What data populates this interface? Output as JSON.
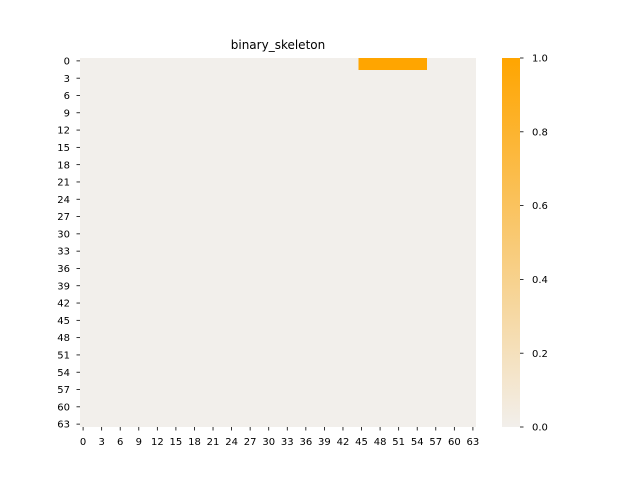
{
  "chart_data": {
    "type": "heatmap",
    "title": "binary_skeleton",
    "xlabel": "",
    "ylabel": "",
    "n_rows": 64,
    "n_cols": 64,
    "default_value": 0,
    "nonzero_cells": [
      {
        "row": 0,
        "col_start": 45,
        "col_end": 55,
        "value": 1
      },
      {
        "row": 1,
        "col_start": 45,
        "col_end": 55,
        "value": 1
      }
    ],
    "x_ticks": [
      "0",
      "3",
      "6",
      "9",
      "12",
      "15",
      "18",
      "21",
      "24",
      "27",
      "30",
      "33",
      "36",
      "39",
      "42",
      "45",
      "48",
      "51",
      "54",
      "57",
      "60",
      "63"
    ],
    "y_ticks": [
      "0",
      "3",
      "6",
      "9",
      "12",
      "15",
      "18",
      "21",
      "24",
      "27",
      "30",
      "33",
      "36",
      "39",
      "42",
      "45",
      "48",
      "51",
      "54",
      "57",
      "60",
      "63"
    ],
    "colorbar": {
      "min": 0.0,
      "max": 1.0,
      "ticks": [
        "0.0",
        "0.2",
        "0.4",
        "0.6",
        "0.8",
        "1.0"
      ],
      "color_low": "#f2efeb",
      "color_high": "#ffa500"
    },
    "grid": false
  }
}
